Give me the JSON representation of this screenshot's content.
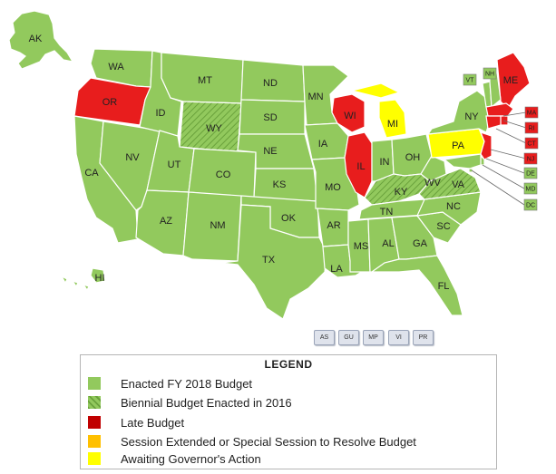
{
  "colors": {
    "enacted": "#92c95d",
    "late": "#e81d1d",
    "late_legend": "#c00000",
    "session": "#ffc000",
    "awaiting": "#ffff00",
    "border": "#ffffff",
    "hatch": "#6aa23c"
  },
  "states": [
    {
      "label": "AK",
      "status": "enacted"
    },
    {
      "label": "HI",
      "status": "enacted"
    },
    {
      "label": "WA",
      "status": "enacted"
    },
    {
      "label": "OR",
      "status": "late"
    },
    {
      "label": "CA",
      "status": "enacted"
    },
    {
      "label": "NV",
      "status": "enacted"
    },
    {
      "label": "ID",
      "status": "enacted"
    },
    {
      "label": "MT",
      "status": "enacted"
    },
    {
      "label": "WY",
      "status": "biennial"
    },
    {
      "label": "UT",
      "status": "enacted"
    },
    {
      "label": "AZ",
      "status": "enacted"
    },
    {
      "label": "CO",
      "status": "enacted"
    },
    {
      "label": "NM",
      "status": "enacted"
    },
    {
      "label": "ND",
      "status": "enacted"
    },
    {
      "label": "SD",
      "status": "enacted"
    },
    {
      "label": "NE",
      "status": "enacted"
    },
    {
      "label": "KS",
      "status": "enacted"
    },
    {
      "label": "OK",
      "status": "enacted"
    },
    {
      "label": "TX",
      "status": "enacted"
    },
    {
      "label": "MN",
      "status": "enacted"
    },
    {
      "label": "IA",
      "status": "enacted"
    },
    {
      "label": "MO",
      "status": "enacted"
    },
    {
      "label": "AR",
      "status": "enacted"
    },
    {
      "label": "LA",
      "status": "enacted"
    },
    {
      "label": "WI",
      "status": "late"
    },
    {
      "label": "IL",
      "status": "late"
    },
    {
      "label": "MI",
      "status": "awaiting"
    },
    {
      "label": "IN",
      "status": "enacted"
    },
    {
      "label": "OH",
      "status": "enacted"
    },
    {
      "label": "KY",
      "status": "biennial"
    },
    {
      "label": "TN",
      "status": "enacted"
    },
    {
      "label": "MS",
      "status": "enacted"
    },
    {
      "label": "AL",
      "status": "enacted"
    },
    {
      "label": "GA",
      "status": "enacted"
    },
    {
      "label": "FL",
      "status": "enacted"
    },
    {
      "label": "SC",
      "status": "enacted"
    },
    {
      "label": "NC",
      "status": "enacted"
    },
    {
      "label": "VA",
      "status": "biennial"
    },
    {
      "label": "WV",
      "status": "enacted"
    },
    {
      "label": "PA",
      "status": "awaiting"
    },
    {
      "label": "NY",
      "status": "enacted"
    },
    {
      "label": "ME",
      "status": "late"
    },
    {
      "label": "VT",
      "status": "enacted"
    },
    {
      "label": "NH",
      "status": "enacted"
    },
    {
      "label": "MA",
      "status": "late"
    },
    {
      "label": "RI",
      "status": "late"
    },
    {
      "label": "CT",
      "status": "late"
    },
    {
      "label": "NJ",
      "status": "late"
    },
    {
      "label": "DE",
      "status": "enacted"
    },
    {
      "label": "MD",
      "status": "enacted"
    },
    {
      "label": "DC",
      "status": "enacted"
    }
  ],
  "territories": [
    "AS",
    "GU",
    "MP",
    "VI",
    "PR"
  ],
  "legend": {
    "title": "LEGEND",
    "items": [
      {
        "label": "Enacted FY 2018 Budget",
        "status": "enacted"
      },
      {
        "label": "Biennial Budget Enacted in 2016",
        "status": "biennial"
      },
      {
        "label": "Late Budget",
        "status": "late"
      },
      {
        "label": "Session Extended or Special Session to Resolve Budget",
        "status": "session"
      },
      {
        "label": "Awaiting Governor's Action",
        "status": "awaiting"
      }
    ]
  }
}
